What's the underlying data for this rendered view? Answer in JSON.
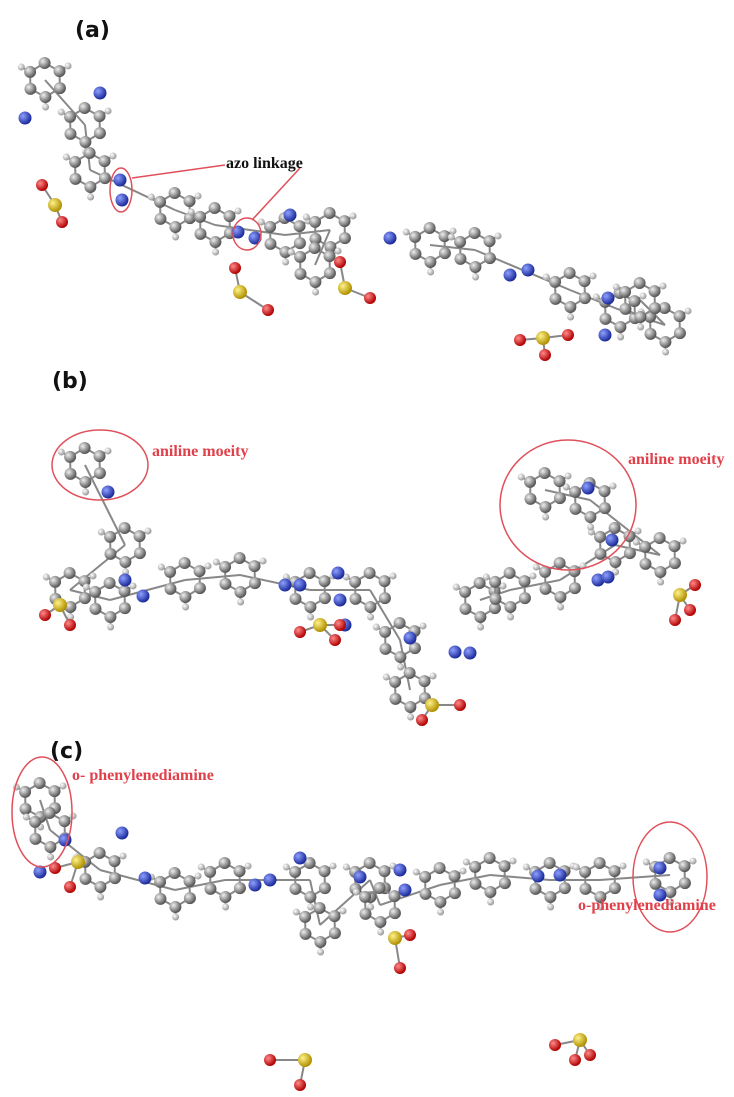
{
  "panels": [
    {
      "label": "(a)",
      "annotations": [
        "azo linkage"
      ]
    },
    {
      "label": "(b)",
      "annotations": [
        "aniline moeity",
        "aniline moeity"
      ]
    },
    {
      "label": "(c)",
      "annotations": [
        "o- phenylenediamine",
        "o-phenylenediamine"
      ]
    }
  ]
}
